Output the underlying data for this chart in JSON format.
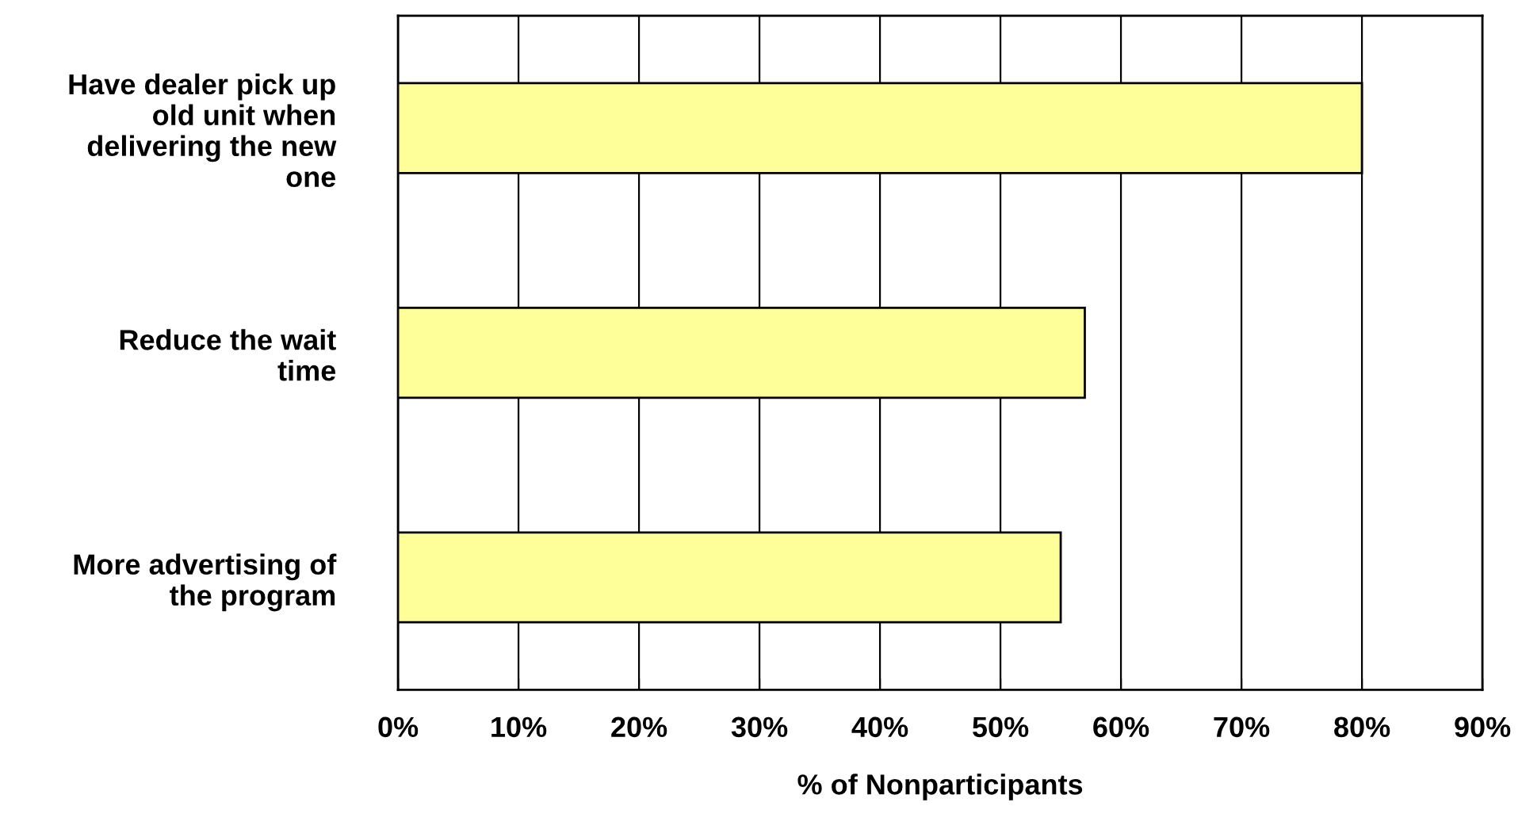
{
  "chart_data": {
    "type": "bar",
    "orientation": "horizontal",
    "categories": [
      "Have dealer pick up old unit when delivering the new one",
      "Reduce the wait time",
      "More advertising of the program"
    ],
    "values": [
      80,
      57,
      55
    ],
    "color": "#ffff99",
    "xlabel": "% of Nonparticipants",
    "xlim": [
      0,
      90
    ],
    "xticks": [
      {
        "value": 0,
        "label": "0%"
      },
      {
        "value": 10,
        "label": "10%"
      },
      {
        "value": 20,
        "label": "20%"
      },
      {
        "value": 30,
        "label": "30%"
      },
      {
        "value": 40,
        "label": "40%"
      },
      {
        "value": 50,
        "label": "50%"
      },
      {
        "value": 60,
        "label": "60%"
      },
      {
        "value": 70,
        "label": "70%"
      },
      {
        "value": 80,
        "label": "80%"
      },
      {
        "value": 90,
        "label": "90%"
      }
    ],
    "grid": "x"
  }
}
